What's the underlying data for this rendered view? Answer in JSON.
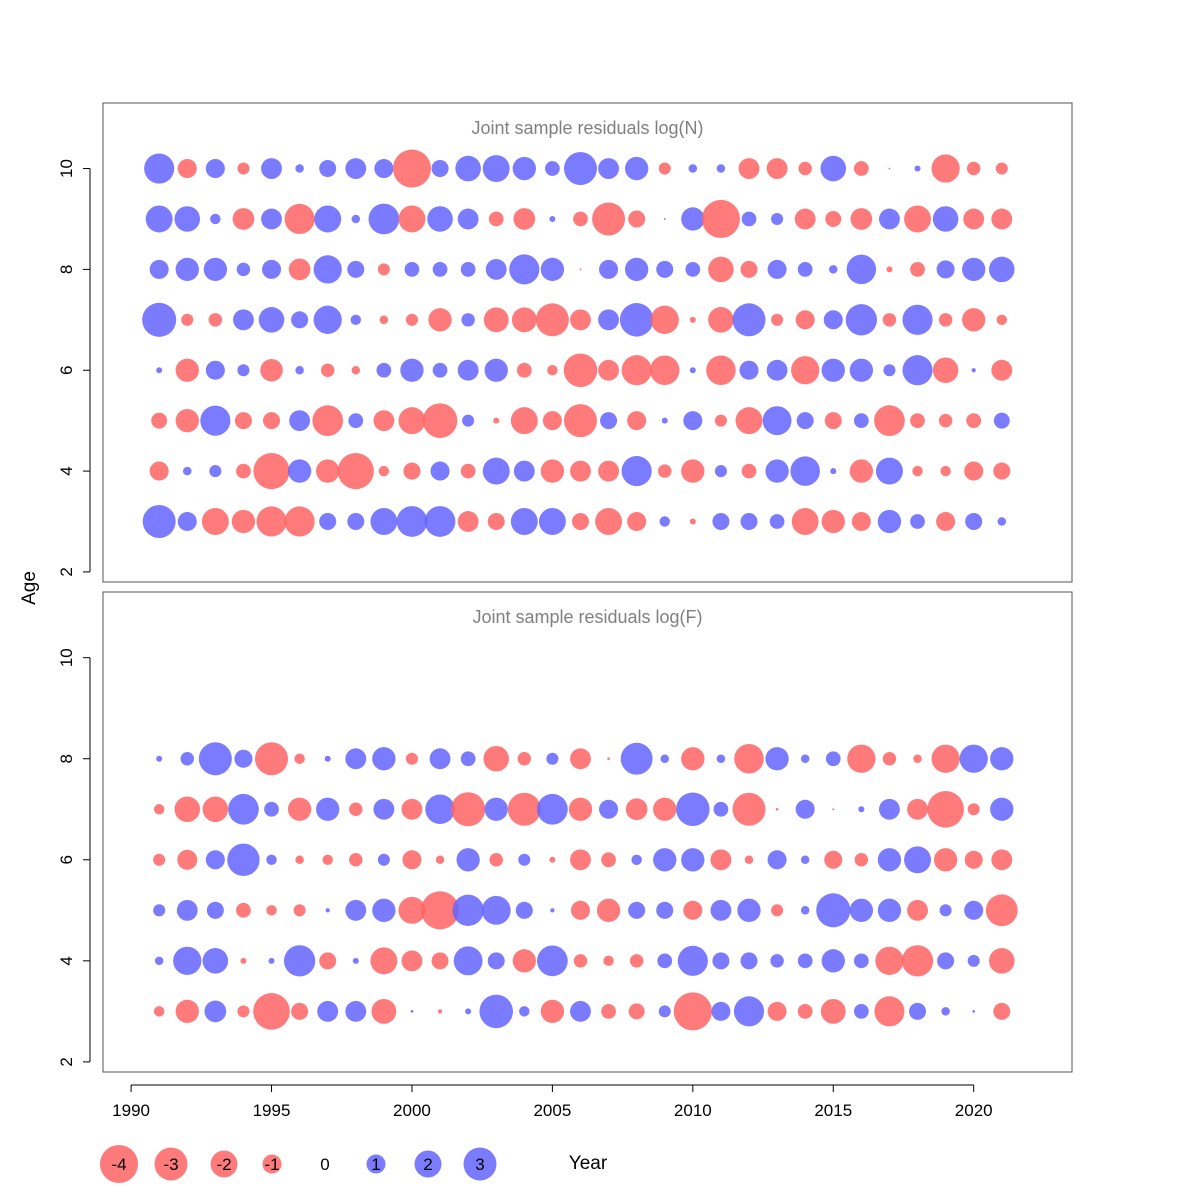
{
  "chart_data": {
    "type": "bubble",
    "xlabel": "Year",
    "ylabel": "Age",
    "xlim": [
      1989,
      2023.5
    ],
    "ylim": [
      1.8,
      11.3
    ],
    "x_ticks": [
      1990,
      1995,
      2000,
      2005,
      2010,
      2015,
      2020
    ],
    "y_ticks": [
      2,
      4,
      6,
      8,
      10
    ],
    "colors": {
      "negative": "#ff6464",
      "positive": "#6464ff"
    },
    "years": [
      1991,
      1992,
      1993,
      1994,
      1995,
      1996,
      1997,
      1998,
      1999,
      2000,
      2001,
      2002,
      2003,
      2004,
      2005,
      2006,
      2007,
      2008,
      2009,
      2010,
      2011,
      2012,
      2013,
      2014,
      2015,
      2016,
      2017,
      2018,
      2019,
      2020,
      2021
    ],
    "panels": [
      {
        "title": "Joint sample residuals log(N)",
        "ages": [
          3,
          4,
          5,
          6,
          7,
          8,
          9,
          10
        ],
        "residuals": {
          "3": [
            3.0,
            1.0,
            -2.0,
            -1.5,
            -2.5,
            -2.5,
            0.8,
            0.8,
            2.0,
            2.6,
            2.6,
            -1.2,
            -0.8,
            2.0,
            2.0,
            -0.8,
            -2.0,
            -1.0,
            0.3,
            -0.1,
            0.8,
            0.8,
            0.6,
            -2.0,
            -1.5,
            -1.0,
            1.5,
            0.6,
            -1.0,
            0.8,
            0.2
          ],
          "4": [
            -1.0,
            0.2,
            0.4,
            -0.6,
            -3.6,
            1.5,
            -1.5,
            -3.6,
            -0.3,
            -0.8,
            1.0,
            -0.6,
            2.0,
            1.2,
            -1.5,
            -1.2,
            -1.2,
            2.5,
            -0.5,
            -1.5,
            0.4,
            -0.6,
            1.5,
            2.4,
            0.1,
            -1.5,
            2.0,
            -0.3,
            -0.3,
            -1.0,
            -0.8
          ],
          "5": [
            -0.7,
            -1.5,
            2.5,
            -0.8,
            -0.8,
            1.2,
            -2.6,
            0.6,
            -1.2,
            -2.0,
            -3.3,
            0.4,
            -0.1,
            -2.0,
            -1.0,
            -3.0,
            0.8,
            -1.0,
            0.1,
            1.0,
            -0.4,
            -2.0,
            2.3,
            0.8,
            -0.8,
            0.6,
            -2.6,
            -0.6,
            -0.5,
            -0.6,
            0.7
          ],
          "6": [
            0.1,
            -1.5,
            1.0,
            0.4,
            -1.4,
            0.2,
            -0.5,
            -0.2,
            0.6,
            1.5,
            0.6,
            1.2,
            1.5,
            -0.6,
            -0.3,
            -3.1,
            -1.2,
            -2.5,
            -2.4,
            0.1,
            -2.4,
            1.0,
            1.2,
            -2.2,
            1.5,
            1.5,
            0.4,
            2.5,
            -1.8,
            0.05,
            -1.2
          ],
          "7": [
            3.2,
            -0.4,
            -0.5,
            1.2,
            1.8,
            0.8,
            2.2,
            0.3,
            -0.2,
            -0.4,
            -1.5,
            0.5,
            -1.7,
            -1.7,
            -3.0,
            -1.2,
            1.2,
            3.1,
            -2.2,
            -0.1,
            -1.8,
            3.0,
            -0.4,
            -1.0,
            1.0,
            2.7,
            -0.5,
            2.5,
            -0.5,
            -1.5,
            -0.3
          ],
          "8": [
            1.0,
            1.5,
            1.5,
            0.5,
            1.0,
            -1.3,
            2.2,
            0.8,
            -0.4,
            0.6,
            0.6,
            0.6,
            1.2,
            2.5,
            1.5,
            -0.01,
            1.0,
            1.5,
            0.8,
            0.6,
            -1.8,
            -0.8,
            1.0,
            0.6,
            0.2,
            2.4,
            -0.1,
            -0.6,
            0.9,
            1.5,
            1.8
          ],
          "9": [
            2.0,
            1.8,
            0.3,
            -1.3,
            1.2,
            -2.5,
            2.0,
            0.2,
            2.6,
            -2.0,
            1.8,
            1.2,
            -0.6,
            -1.3,
            0.1,
            -0.6,
            -3.0,
            -0.8,
            0.01,
            1.5,
            -4.0,
            0.6,
            0.4,
            -1.2,
            -0.7,
            -1.3,
            1.2,
            -2.0,
            1.8,
            -1.2,
            -1.2
          ],
          "10": [
            2.5,
            -1.0,
            1.0,
            -0.4,
            1.2,
            0.2,
            0.8,
            1.2,
            1.0,
            -4.0,
            0.8,
            1.8,
            2.0,
            1.5,
            0.6,
            3.0,
            1.2,
            1.5,
            -0.4,
            0.2,
            0.2,
            -1.2,
            -1.2,
            -0.5,
            1.8,
            -0.6,
            -0.01,
            0.1,
            -2.2,
            -0.5,
            -0.4
          ]
        }
      },
      {
        "title": "Joint sample residuals log(F)",
        "ages": [
          3,
          4,
          5,
          6,
          7,
          8
        ],
        "residuals": {
          "3": [
            -0.3,
            -1.5,
            1.3,
            -0.4,
            -3.7,
            -0.8,
            1.2,
            1.2,
            -1.7,
            0.02,
            -0.05,
            0.1,
            3.1,
            0.3,
            -1.5,
            1.2,
            -0.6,
            -0.7,
            0.4,
            -4.0,
            1.0,
            2.5,
            -1.0,
            -0.6,
            -1.7,
            0.6,
            -2.5,
            0.8,
            0.2,
            0.02,
            -0.8
          ],
          "4": [
            0.2,
            2.2,
            1.8,
            -0.1,
            0.1,
            2.7,
            -0.8,
            0.1,
            -2.0,
            -1.2,
            -0.8,
            2.3,
            0.8,
            -1.5,
            2.6,
            -0.5,
            -0.3,
            -0.5,
            0.6,
            2.5,
            0.8,
            0.8,
            0.5,
            0.6,
            1.5,
            0.6,
            -2.2,
            -2.7,
            0.8,
            0.4,
            -1.8
          ],
          "5": [
            0.4,
            1.2,
            0.8,
            -0.6,
            -0.3,
            -0.4,
            0.05,
            1.2,
            1.5,
            -2.0,
            -4.0,
            2.7,
            2.3,
            0.8,
            0.05,
            -1.0,
            -1.5,
            0.8,
            0.8,
            -1.0,
            1.2,
            1.5,
            -0.4,
            0.2,
            3.2,
            1.5,
            1.5,
            -1.2,
            0.4,
            1.0,
            -2.8
          ],
          "6": [
            -0.4,
            -1.1,
            1.0,
            2.9,
            0.3,
            -0.2,
            -0.3,
            -0.5,
            0.4,
            -1.0,
            -0.2,
            1.5,
            -0.5,
            0.4,
            -0.1,
            -1.2,
            -0.6,
            0.3,
            1.5,
            1.5,
            -1.2,
            -0.2,
            1.0,
            0.2,
            -0.9,
            -0.5,
            1.5,
            2.0,
            -1.5,
            -0.9,
            -1.2
          ],
          "7": [
            -0.3,
            -1.8,
            -1.8,
            2.6,
            0.6,
            -1.5,
            1.5,
            -0.5,
            1.2,
            -1.2,
            2.4,
            -3.2,
            1.5,
            -3.0,
            2.6,
            -1.5,
            1.0,
            -1.3,
            -1.5,
            3.1,
            0.6,
            -3.0,
            -0.02,
            1.0,
            -0.01,
            0.1,
            1.2,
            -1.2,
            -3.7,
            -0.4,
            1.5
          ],
          "8": [
            0.1,
            0.5,
            3.0,
            0.9,
            -3.0,
            -0.3,
            0.1,
            1.2,
            1.5,
            -0.4,
            1.2,
            0.6,
            -1.8,
            -0.5,
            0.4,
            -1.2,
            -0.02,
            2.8,
            0.2,
            -1.5,
            0.2,
            -2.4,
            1.5,
            0.2,
            0.6,
            -2.2,
            -0.5,
            -0.2,
            -2.2,
            2.2,
            1.5
          ]
        }
      }
    ],
    "legend": [
      -4,
      -3,
      -2,
      -1,
      0,
      1,
      2,
      3
    ]
  }
}
